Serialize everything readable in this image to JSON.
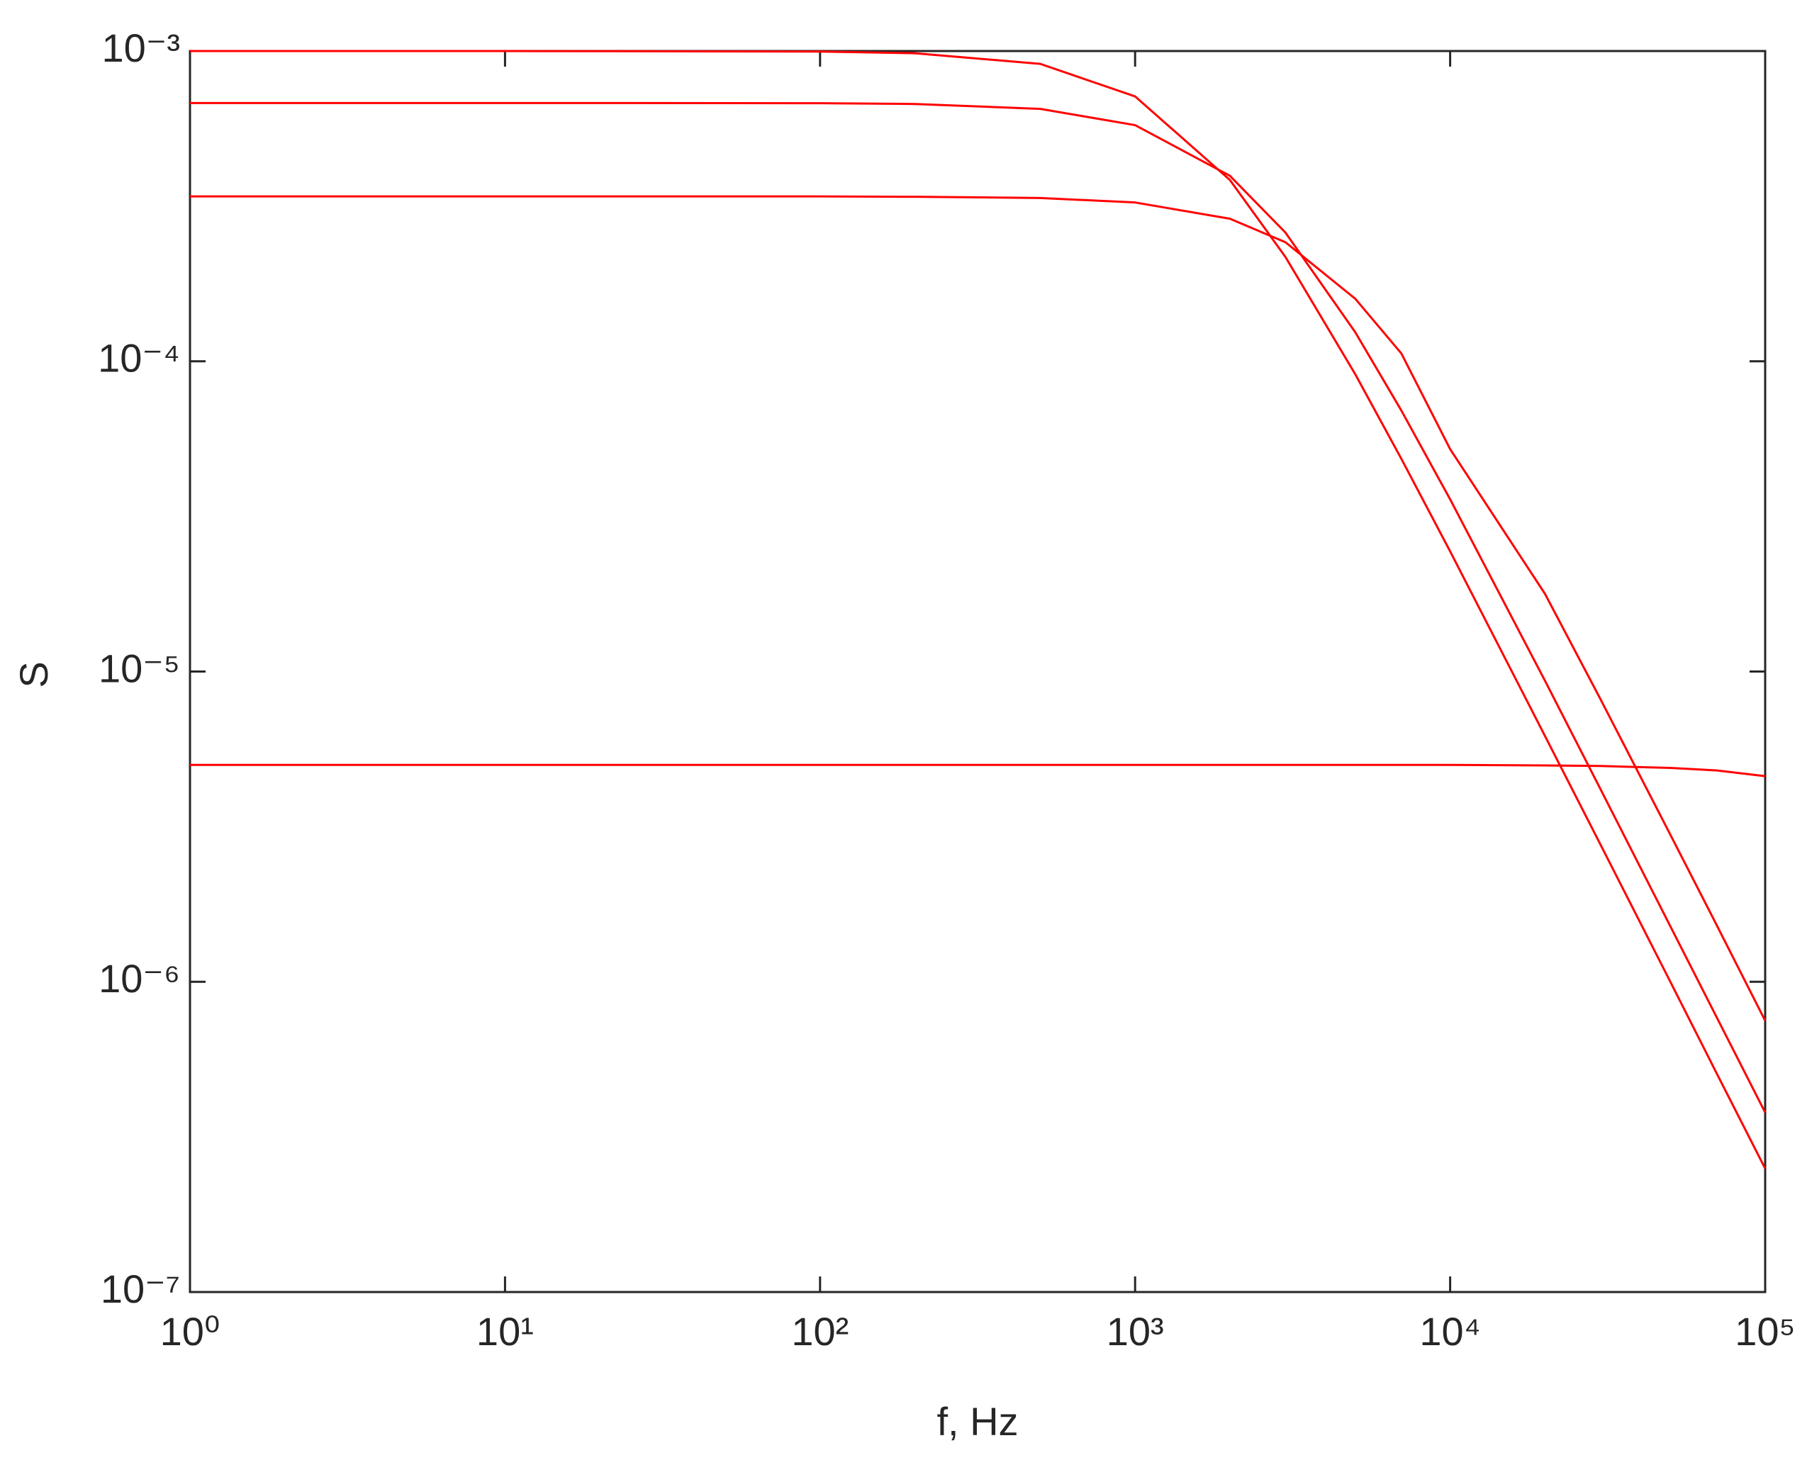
{
  "chart_data": {
    "type": "line",
    "x_label": "f, Hz",
    "y_label": "S",
    "x": [
      1,
      10,
      100,
      200,
      500,
      1000,
      2000,
      3000,
      5000,
      7000,
      10000,
      20000,
      30000,
      50000,
      70000,
      100000
    ],
    "series": [
      {
        "color": "#ff0000",
        "values": [
          0.001,
          0.001,
          0.000996,
          0.000984,
          0.000909,
          0.000714,
          0.000384,
          0.000217,
          9.08e-05,
          4.85e-05,
          2.44e-05,
          6.2e-06,
          2.77e-06,
          1e-06,
          5.09e-07,
          2.5e-07
        ]
      },
      {
        "color": "#ff0000",
        "values": [
          0.00068,
          0.00068,
          0.000679,
          0.000675,
          0.000651,
          0.000577,
          0.000396,
          0.00026,
          0.000124,
          6.94e-05,
          3.59e-05,
          9.34e-06,
          4.18e-06,
          1.51e-06,
          7.72e-07,
          3.79e-07
        ]
      },
      {
        "color": "#ff0000",
        "values": [
          0.00034,
          0.00034,
          0.00034,
          0.000339,
          0.000336,
          0.000325,
          0.000288,
          0.000242,
          0.000159,
          0.000106,
          5.21e-05,
          1.78e-05,
          8.15e-06,
          2.98e-06,
          1.53e-06,
          7.49e-07
        ]
      },
      {
        "color": "#ff0000",
        "values": [
          5e-06,
          5e-06,
          5e-06,
          5e-06,
          5e-06,
          5e-06,
          5e-06,
          5e-06,
          5e-06,
          5e-06,
          5e-06,
          4.98e-06,
          4.96e-06,
          4.89e-06,
          4.8e-06,
          4.6e-06
        ]
      }
    ],
    "xscale": "log",
    "yscale": "log",
    "xlim": [
      1,
      100000
    ],
    "ylim": [
      1e-07,
      0.001
    ],
    "xticks": [
      {
        "value": 1,
        "label": "10⁰"
      },
      {
        "value": 10,
        "label": "10¹"
      },
      {
        "value": 100,
        "label": "10²"
      },
      {
        "value": 1000,
        "label": "10³"
      },
      {
        "value": 10000,
        "label": "10⁴"
      },
      {
        "value": 100000,
        "label": "10⁵"
      }
    ],
    "yticks": [
      {
        "value": 1e-07,
        "label": "10⁻⁷"
      },
      {
        "value": 1e-06,
        "label": "10⁻⁶"
      },
      {
        "value": 1e-05,
        "label": "10⁻⁵"
      },
      {
        "value": 0.0001,
        "label": "10⁻⁴"
      },
      {
        "value": 0.001,
        "label": "10⁻³"
      }
    ],
    "grid": false
  }
}
